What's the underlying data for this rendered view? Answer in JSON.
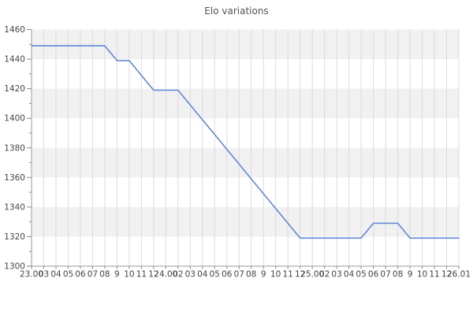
{
  "title": "Elo variations",
  "colors": {
    "line": "#5f88d8",
    "band": "#f1f1f1",
    "grid": "#dcdcdc",
    "axis": "#999999",
    "tick": "#8a8a8a",
    "label_text": "#454545",
    "title_text": "#555555",
    "background": "#ffffff"
  },
  "chart_data": {
    "type": "line",
    "title": "Elo variations",
    "xlabel": "",
    "ylabel": "",
    "ylim": [
      1300,
      1460
    ],
    "y_major_step": 20,
    "y_minor_step": 10,
    "y_tick_labels": [
      "1460",
      "1440",
      "1420",
      "1400",
      "1380",
      "1360",
      "1340",
      "1320",
      "1300"
    ],
    "x_tick_labels": [
      "23.00",
      "03",
      "04",
      "05",
      "06",
      "07",
      "08",
      "9",
      "10",
      "11",
      "12",
      "24.00",
      "02",
      "03",
      "04",
      "05",
      "06",
      "07",
      "08",
      "9",
      "10",
      "11",
      "12",
      "25.00",
      "02",
      "03",
      "04",
      "05",
      "06",
      "07",
      "08",
      "9",
      "10",
      "11",
      "12",
      "26.01"
    ],
    "grid": "vertical gridlines at every x tick; alternating horizontal bands every 20 units (gray on 1440-1460, 1400-1420, 1360-1380, 1320-1340)",
    "legend": "none",
    "series": [
      {
        "name": "Elo",
        "values": [
          1449,
          1449,
          1449,
          1449,
          1449,
          1449,
          1449,
          1439,
          1439,
          1429,
          1419,
          1419,
          1419,
          1409,
          1399,
          1389,
          1379,
          1369,
          1359,
          1349,
          1339,
          1329,
          1319,
          1319,
          1319,
          1319,
          1319,
          1319,
          1329,
          1329,
          1329,
          1319,
          1319,
          1319,
          1319,
          1319
        ]
      }
    ]
  }
}
